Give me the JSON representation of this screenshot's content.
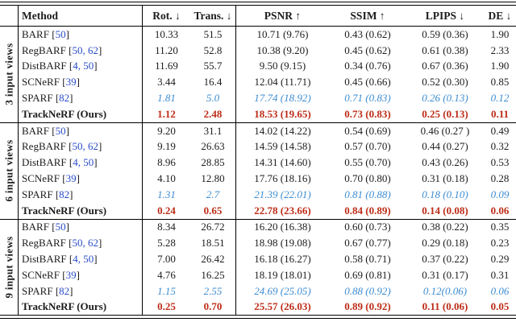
{
  "table": {
    "colors": {
      "citation_blue": "#2a4cc8",
      "second_best_blue": "#3d8cd0",
      "best_red": "#bd2d18",
      "text": "#1c1c1c",
      "rule": "#000000"
    },
    "header": {
      "method": "Method",
      "rot": "Rot. ↓",
      "trans": "Trans. ↓",
      "psnr": "PSNR ↑",
      "ssim": "SSIM ↑",
      "lpips": "LPIPS ↓",
      "de": "DE ↓"
    },
    "sections": [
      {
        "label": "3 input views",
        "rows": [
          {
            "key": "barf",
            "method": "BARF",
            "cite": "50",
            "style": "normal",
            "rot": "10.33",
            "trans": "51.5",
            "psnr": "10.71 (9.76)",
            "ssim": "0.43 (0.62)",
            "lpips": "0.59 (0.36)",
            "de": "1.90"
          },
          {
            "key": "regbarf",
            "method": "RegBARF",
            "cite": "50, 62",
            "style": "normal",
            "rot": "11.20",
            "trans": "52.8",
            "psnr": "10.38 (9.20)",
            "ssim": "0.45 (0.62)",
            "lpips": "0.61 (0.38)",
            "de": "2.33"
          },
          {
            "key": "distbarf",
            "method": "DistBARF",
            "cite": "4, 50",
            "style": "normal",
            "rot": "11.69",
            "trans": "55.7",
            "psnr": "9.50 (9.15)",
            "ssim": "0.34 (0.76)",
            "lpips": "0.67 (0.36)",
            "de": "1.90"
          },
          {
            "key": "scnerf",
            "method": "SCNeRF",
            "cite": "39",
            "style": "normal",
            "rot": "3.44",
            "trans": "16.4",
            "psnr": "12.04 (11.71)",
            "ssim": "0.45 (0.66)",
            "lpips": "0.52 (0.30)",
            "de": "0.85"
          },
          {
            "key": "sparf",
            "method": "SPARF",
            "cite": "82",
            "style": "second",
            "rot": "1.81",
            "trans": "5.0",
            "psnr": "17.74 (18.92)",
            "ssim": "0.71 (0.83)",
            "lpips": "0.26 (0.13)",
            "de": "0.12"
          },
          {
            "key": "tracknerf",
            "method": "TrackNeRF (Ours)",
            "cite": null,
            "style": "best",
            "rot": "1.12",
            "trans": "2.48",
            "psnr": "18.53 (19.65)",
            "ssim": "0.73 (0.83)",
            "lpips": "0.25 (0.13)",
            "de": "0.11"
          }
        ]
      },
      {
        "label": "6 input views",
        "rows": [
          {
            "key": "barf",
            "method": "BARF",
            "cite": "50",
            "style": "normal",
            "rot": "9.20",
            "trans": "31.1",
            "psnr": "14.02 (14.22)",
            "ssim": "0.54 (0.69)",
            "lpips": "0.46 (0.27 )",
            "de": "0.49"
          },
          {
            "key": "regbarf",
            "method": "RegBARF",
            "cite": "50, 62",
            "style": "normal",
            "rot": "9.19",
            "trans": "26.63",
            "psnr": "14.59 (14.58)",
            "ssim": "0.57 (0.70)",
            "lpips": "0.44 (0.27)",
            "de": "0.32"
          },
          {
            "key": "distbarf",
            "method": "DistBARF",
            "cite": "4, 50",
            "style": "normal",
            "rot": "8.96",
            "trans": "28.85",
            "psnr": "14.31 (14.60)",
            "ssim": "0.55 (0.70)",
            "lpips": "0.43 (0.26)",
            "de": "0.53"
          },
          {
            "key": "scnerf",
            "method": "SCNeRF",
            "cite": "39",
            "style": "normal",
            "rot": "4.10",
            "trans": "12.80",
            "psnr": "17.76 (18.16)",
            "ssim": "0.70 (0.80)",
            "lpips": "0.31 (0.18)",
            "de": "0.28"
          },
          {
            "key": "sparf",
            "method": "SPARF",
            "cite": "82",
            "style": "second",
            "rot": "1.31",
            "trans": "2.7",
            "psnr": "21.39 (22.01)",
            "ssim": "0.81 (0.88)",
            "lpips": "0.18 (0.10)",
            "de": "0.09"
          },
          {
            "key": "tracknerf",
            "method": "TrackNeRF (Ours)",
            "cite": null,
            "style": "best",
            "rot": "0.24",
            "trans": "0.65",
            "psnr": "22.78 (23.66)",
            "ssim": "0.84 (0.89)",
            "lpips": "0.14 (0.08)",
            "de": "0.06"
          }
        ]
      },
      {
        "label": "9 input views",
        "rows": [
          {
            "key": "barf",
            "method": "BARF",
            "cite": "50",
            "style": "normal",
            "rot": "8.34",
            "trans": "26.72",
            "psnr": "16.20 (16.38)",
            "ssim": "0.60 (0.73)",
            "lpips": "0.38 (0.22)",
            "de": "0.35"
          },
          {
            "key": "regbarf",
            "method": "RegBARF",
            "cite": "50, 62",
            "style": "normal",
            "rot": "5.28",
            "trans": "18.51",
            "psnr": "18.98 (19.08)",
            "ssim": "0.67 (0.77)",
            "lpips": "0.29 (0.18)",
            "de": "0.23"
          },
          {
            "key": "distbarf",
            "method": "DistBARF",
            "cite": "4, 50",
            "style": "normal",
            "rot": "7.00",
            "trans": "26.42",
            "psnr": "16.18 (16.27)",
            "ssim": "0.58 (0.71)",
            "lpips": "0.37 (0.22)",
            "de": "0.29"
          },
          {
            "key": "scnerf",
            "method": "SCNeRF",
            "cite": "39",
            "style": "normal",
            "rot": "4.76",
            "trans": "16.25",
            "psnr": "18.19 (18.01)",
            "ssim": "0.69 (0.81)",
            "lpips": "0.31 (0.17)",
            "de": "0.31"
          },
          {
            "key": "sparf",
            "method": "SPARF",
            "cite": "82",
            "style": "second",
            "rot": "1.15",
            "trans": "2.55",
            "psnr": "24.69 (25.05)",
            "ssim": "0.88 (0.92)",
            "lpips": "0.12(0.06)",
            "de": "0.06"
          },
          {
            "key": "tracknerf",
            "method": "TrackNeRF (Ours)",
            "cite": null,
            "style": "best",
            "rot": "0.25",
            "trans": "0.70",
            "psnr": "25.57 (26.03)",
            "ssim": "0.89 (0.92)",
            "lpips": "0.11 (0.06)",
            "de": "0.05"
          }
        ]
      }
    ]
  }
}
